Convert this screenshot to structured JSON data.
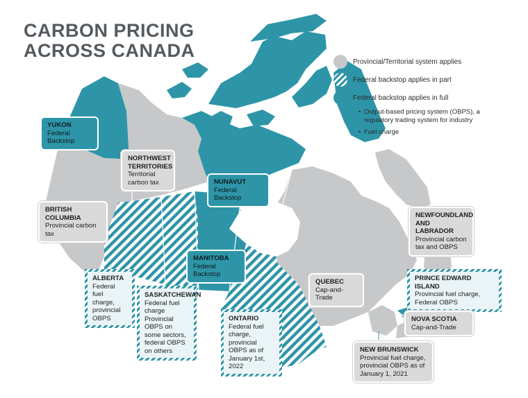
{
  "title": {
    "line1": "CARBON PRICING",
    "line2": "ACROSS CANADA"
  },
  "colors": {
    "provincial": "#c7c8ca",
    "federal_full": "#2e95a8",
    "federal_part": "#2e95a8",
    "background": "#ffffff"
  },
  "legend": {
    "items": [
      {
        "label": "Provincial/Territorial system applies",
        "style": "grey"
      },
      {
        "label": "Federal backstop applies in part",
        "style": "hatch"
      },
      {
        "label": "Federal backstop applies in full",
        "style": "teal"
      }
    ],
    "bullets": [
      "Output-based pricing system (OBPS), a regulatory trading system for industry",
      "Fuel charge"
    ]
  },
  "regions": {
    "yukon": {
      "name": "YUKON",
      "desc": "Federal Backstop",
      "status": "full"
    },
    "nwt": {
      "name": "NORTHWEST TERRITORIES",
      "desc": "Territorial carbon tax",
      "status": "provincial"
    },
    "nunavut": {
      "name": "NUNAVUT",
      "desc": "Federal Backstop",
      "status": "full"
    },
    "bc": {
      "name": "BRITISH COLUMBIA",
      "desc": "Provincial carbon tax",
      "status": "provincial"
    },
    "alberta": {
      "name": "ALBERTA",
      "desc": "Federal fuel charge, provincial OBPS",
      "status": "part"
    },
    "saskatchewan": {
      "name": "SASKATCHEWAN",
      "desc": "Federal fuel charge Provincial OBPS on some sectors, federal OBPS on others",
      "status": "part"
    },
    "manitoba": {
      "name": "MANITOBA",
      "desc": "Federal Backstop",
      "status": "full"
    },
    "ontario": {
      "name": "ONTARIO",
      "desc": "Federal fuel charge, provincial OBPS as of January 1st, 2022",
      "status": "part"
    },
    "quebec": {
      "name": "QUEBEC",
      "desc": "Cap-and-Trade",
      "status": "provincial"
    },
    "newfoundland": {
      "name": "NEWFOUNDLAND AND LABRADOR",
      "desc": "Provincial carbon tax and OBPS",
      "status": "provincial"
    },
    "pei": {
      "name": "PRINCE EDWARD ISLAND",
      "desc": "Provincial fuel charge, Federal OBPS",
      "status": "part"
    },
    "nova_scotia": {
      "name": "NOVA SCOTIA",
      "desc": "Cap-and-Trade",
      "status": "provincial"
    },
    "new_brunswick": {
      "name": "NEW BRUNSWICK",
      "desc": "Provincial fuel charge, provincial OBPS as of January 1, 2021",
      "status": "provincial"
    }
  }
}
